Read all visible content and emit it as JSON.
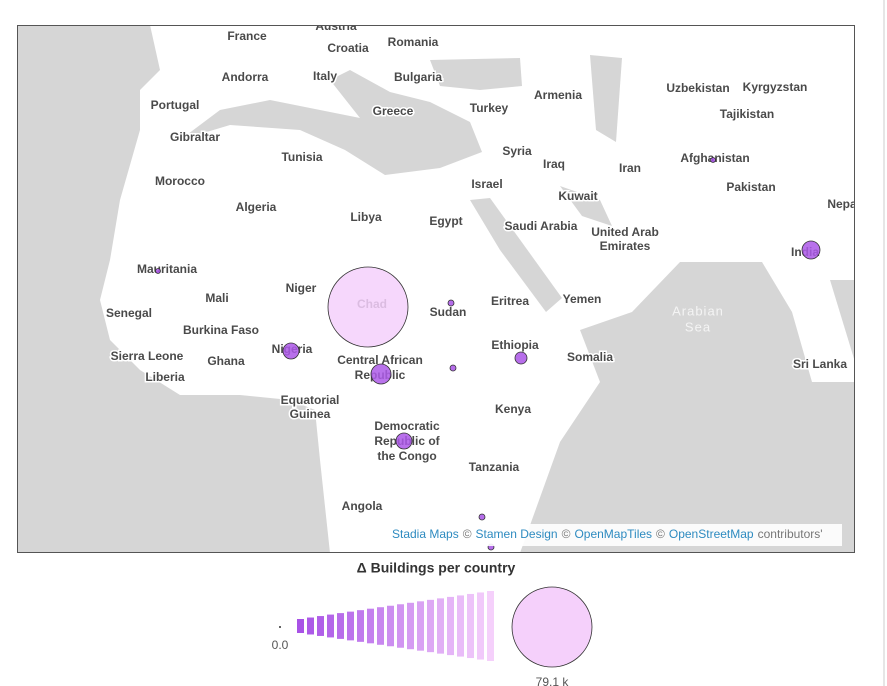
{
  "map": {
    "labels": [
      "Austria",
      "France",
      "Croatia",
      "Romania",
      "Andorra",
      "Italy",
      "Bulgaria",
      "Portugal",
      "Greece",
      "Turkey",
      "Armenia",
      "Uzbekistan",
      "Kyrgyzstan",
      "Tajikistan",
      "Gibraltar",
      "Tunisia",
      "Syria",
      "Iraq",
      "Iran",
      "Afghanistan",
      "Morocco",
      "Israel",
      "Kuwait",
      "Pakistan",
      "Nepa",
      "Algeria",
      "Libya",
      "Egypt",
      "Saudi Arabia",
      "United Arab",
      "Emirates",
      "India",
      "Mauritania",
      "Niger",
      "Chad",
      "Mali",
      "Eritrea",
      "Yemen",
      "Arabian",
      "Sea",
      "Senegal",
      "Sudan",
      "Burkina Faso",
      "Sierra Leone",
      "Ghana",
      "Nigeria",
      "Central African",
      "Republic",
      "Ethiopia",
      "Somalia",
      "Sri Lanka",
      "Liberia",
      "Equatorial",
      "Guinea",
      "Kenya",
      "Democratic",
      "Republic of",
      "the Congo",
      "Tanzania",
      "Angola"
    ],
    "markers": {
      "values": [
        79100,
        3164,
        4944,
        3164,
        1780,
        4005,
        445,
        445,
        198,
        198,
        445,
        445
      ]
    },
    "attribution": [
      {
        "text": "Stadia Maps",
        "link": true
      },
      {
        "text": "©"
      },
      {
        "text": "Stamen Design",
        "link": true
      },
      {
        "text": "©"
      },
      {
        "text": "OpenMapTiles",
        "link": true
      },
      {
        "text": "©"
      },
      {
        "text": "OpenStreetMap",
        "link": true
      },
      {
        "text": "contributors'"
      }
    ],
    "legend": {
      "title": "Δ Buildings per country",
      "min": {
        "value": 0,
        "label": "0.0"
      },
      "max": {
        "value": 79100,
        "label": "79.1 k"
      }
    }
  }
}
